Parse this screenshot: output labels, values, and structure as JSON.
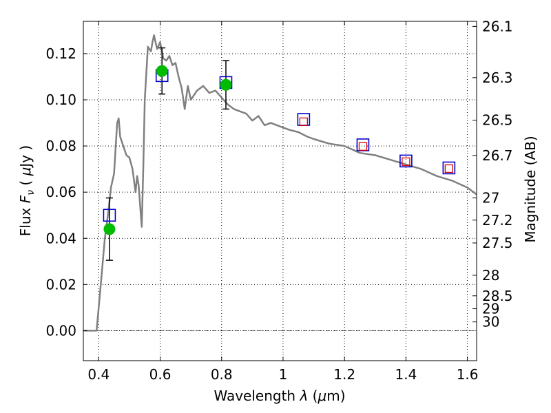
{
  "chart_data": {
    "type": "scatter",
    "xlabel": "Wavelength  λ (μm)",
    "ylabel": "Flux  Fν  ( μJy )",
    "ylabel_right": "Magnitude (AB)",
    "xlim": [
      0.35,
      1.63
    ],
    "ylim": [
      -0.013,
      0.134
    ],
    "x_ticks": [
      {
        "value": 0.4,
        "label": "0.4"
      },
      {
        "value": 0.6,
        "label": "0.6"
      },
      {
        "value": 0.8,
        "label": "0.8"
      },
      {
        "value": 1.0,
        "label": "1"
      },
      {
        "value": 1.2,
        "label": "1.2"
      },
      {
        "value": 1.4,
        "label": "1.4"
      },
      {
        "value": 1.6,
        "label": "1.6"
      }
    ],
    "y_ticks": [
      {
        "value": 0.0,
        "label": "0.00"
      },
      {
        "value": 0.02,
        "label": "0.02"
      },
      {
        "value": 0.04,
        "label": "0.04"
      },
      {
        "value": 0.06,
        "label": "0.06"
      },
      {
        "value": 0.08,
        "label": "0.08"
      },
      {
        "value": 0.1,
        "label": "0.10"
      },
      {
        "value": 0.12,
        "label": "0.12"
      }
    ],
    "right_ticks": [
      {
        "flux": 0.1318,
        "label": "26.1"
      },
      {
        "flux": 0.1096,
        "label": "26.3"
      },
      {
        "flux": 0.0912,
        "label": "26.5"
      },
      {
        "flux": 0.0759,
        "label": "26.7"
      },
      {
        "flux": 0.0575,
        "label": "27"
      },
      {
        "flux": 0.0479,
        "label": "27.2"
      },
      {
        "flux": 0.038,
        "label": "27.5"
      },
      {
        "flux": 0.024,
        "label": "28"
      },
      {
        "flux": 0.0151,
        "label": "28.5"
      },
      {
        "flux": 0.0095,
        "label": "29"
      },
      {
        "flux": 0.0038,
        "label": "30"
      }
    ],
    "grid": true,
    "model_spectrum": {
      "color": "#808080",
      "x": [
        0.35,
        0.393,
        0.4,
        0.41,
        0.42,
        0.43,
        0.44,
        0.45,
        0.46,
        0.465,
        0.47,
        0.48,
        0.49,
        0.5,
        0.51,
        0.52,
        0.525,
        0.53,
        0.535,
        0.54,
        0.545,
        0.55,
        0.56,
        0.57,
        0.575,
        0.58,
        0.59,
        0.6,
        0.61,
        0.62,
        0.63,
        0.64,
        0.65,
        0.66,
        0.67,
        0.68,
        0.69,
        0.7,
        0.72,
        0.74,
        0.76,
        0.78,
        0.8,
        0.82,
        0.84,
        0.86,
        0.88,
        0.9,
        0.92,
        0.94,
        0.96,
        0.98,
        1.0,
        1.02,
        1.05,
        1.08,
        1.1,
        1.15,
        1.2,
        1.25,
        1.3,
        1.35,
        1.4,
        1.45,
        1.5,
        1.55,
        1.6,
        1.63
      ],
      "y": [
        0.0,
        0.0,
        0.01,
        0.025,
        0.04,
        0.05,
        0.062,
        0.068,
        0.09,
        0.092,
        0.084,
        0.08,
        0.076,
        0.075,
        0.07,
        0.06,
        0.067,
        0.063,
        0.054,
        0.045,
        0.07,
        0.1,
        0.123,
        0.121,
        0.125,
        0.128,
        0.122,
        0.125,
        0.118,
        0.117,
        0.119,
        0.115,
        0.116,
        0.11,
        0.105,
        0.096,
        0.106,
        0.1,
        0.104,
        0.106,
        0.103,
        0.104,
        0.101,
        0.098,
        0.096,
        0.095,
        0.094,
        0.091,
        0.093,
        0.089,
        0.09,
        0.089,
        0.088,
        0.087,
        0.086,
        0.084,
        0.083,
        0.081,
        0.08,
        0.077,
        0.076,
        0.074,
        0.072,
        0.07,
        0.067,
        0.065,
        0.062,
        0.059
      ]
    },
    "series": [
      {
        "kind": "observed",
        "color": "#00bb00",
        "points": [
          {
            "x": 0.435,
            "y": 0.044,
            "err": 0.0135
          },
          {
            "x": 0.606,
            "y": 0.1125,
            "err": 0.01
          },
          {
            "x": 0.814,
            "y": 0.1065,
            "err": 0.0105
          }
        ]
      },
      {
        "kind": "model-blue",
        "color": "#0000cc",
        "points": [
          {
            "x": 0.435,
            "y": 0.05
          },
          {
            "x": 0.606,
            "y": 0.1105
          },
          {
            "x": 0.814,
            "y": 0.1075
          },
          {
            "x": 1.067,
            "y": 0.0915
          },
          {
            "x": 1.26,
            "y": 0.0805
          },
          {
            "x": 1.4,
            "y": 0.0735
          },
          {
            "x": 1.54,
            "y": 0.0705
          }
        ]
      },
      {
        "kind": "model-red",
        "color": "#dd0000",
        "points": [
          {
            "x": 1.067,
            "y": 0.0905
          },
          {
            "x": 1.26,
            "y": 0.0798
          },
          {
            "x": 1.4,
            "y": 0.0732
          },
          {
            "x": 1.54,
            "y": 0.0702
          }
        ]
      }
    ]
  }
}
